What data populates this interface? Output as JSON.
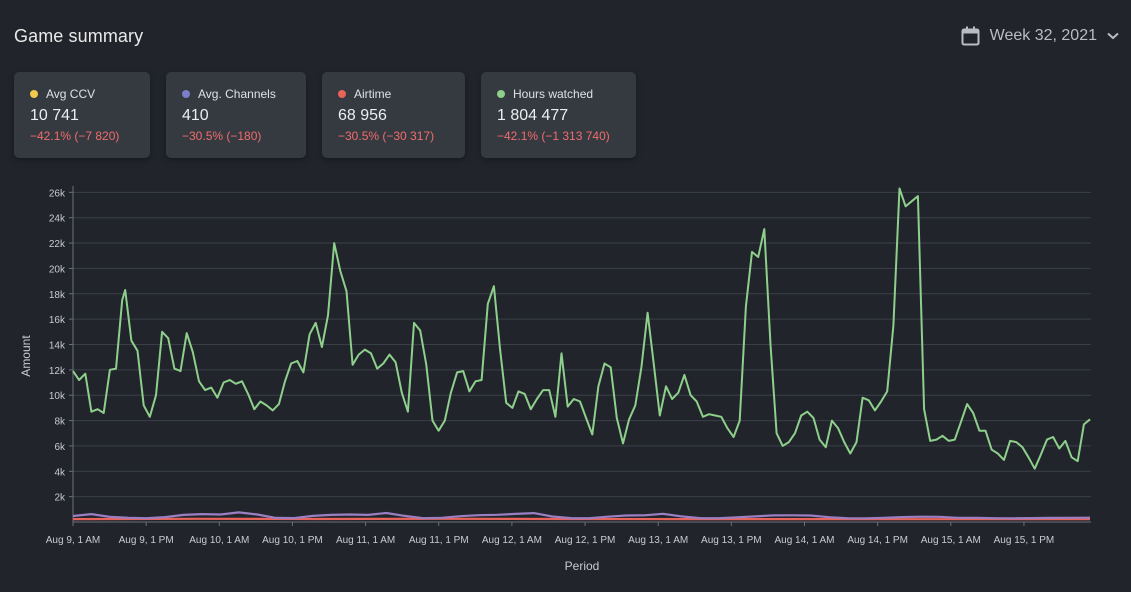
{
  "header": {
    "title": "Game summary",
    "week_label": "Week 32, 2021"
  },
  "cards": [
    {
      "label": "Avg CCV",
      "value": "10 741",
      "change": "−42.1% (−7 820)",
      "color": "#f2c94c"
    },
    {
      "label": "Avg. Channels",
      "value": "410",
      "change": "−30.5% (−180)",
      "color": "#7b7fc9"
    },
    {
      "label": "Airtime",
      "value": "68 956",
      "change": "−30.5% (−30 317)",
      "color": "#e9635a"
    },
    {
      "label": "Hours watched",
      "value": "1 804 477",
      "change": "−42.1% (−1 313 740)",
      "color": "#8ecf8b"
    }
  ],
  "colors": {
    "background": "#21252b",
    "card": "#353a41",
    "negative": "#f06c6c",
    "green_series": "#8ecf8b",
    "purple_series": "#9b7fc2",
    "grid": "#3a3f47"
  },
  "icons": {
    "calendar": "calendar-icon",
    "chevron": "chevron-down-icon"
  },
  "chart_data": {
    "type": "line",
    "xlabel": "Period",
    "ylabel": "Amount",
    "ylim": [
      0,
      26500
    ],
    "y_ticks": [
      2000,
      4000,
      6000,
      8000,
      10000,
      12000,
      14000,
      16000,
      18000,
      20000,
      22000,
      24000,
      26000
    ],
    "y_tick_labels": [
      "2k",
      "4k",
      "6k",
      "8k",
      "10k",
      "12k",
      "14k",
      "16k",
      "18k",
      "20k",
      "22k",
      "24k",
      "26k"
    ],
    "x_tick_labels": [
      "Aug 9, 1 AM",
      "Aug 9, 1 PM",
      "Aug 10, 1 AM",
      "Aug 10, 1 PM",
      "Aug 11, 1 AM",
      "Aug 11, 1 PM",
      "Aug 12, 1 AM",
      "Aug 12, 1 PM",
      "Aug 13, 1 AM",
      "Aug 13, 1 PM",
      "Aug 14, 1 AM",
      "Aug 14, 1 PM",
      "Aug 15, 1 AM",
      "Aug 15, 1 PM"
    ],
    "x_hours_per_tick": 12,
    "total_hours": 167,
    "grid": true,
    "series": [
      {
        "color": "#8ecf8b",
        "points": [
          [
            0,
            11900
          ],
          [
            2,
            11200
          ],
          [
            4,
            11700
          ],
          [
            6,
            8700
          ],
          [
            8,
            8900
          ],
          [
            10,
            8600
          ],
          [
            12,
            12000
          ],
          [
            14,
            12100
          ],
          [
            16,
            17500
          ],
          [
            17,
            18300
          ],
          [
            19,
            14300
          ],
          [
            21,
            13500
          ],
          [
            23,
            9200
          ],
          [
            25,
            8300
          ],
          [
            27,
            10000
          ],
          [
            29,
            15000
          ],
          [
            31,
            14500
          ],
          [
            33,
            12100
          ],
          [
            35,
            11900
          ],
          [
            37,
            14900
          ],
          [
            39,
            13400
          ],
          [
            41,
            11100
          ],
          [
            43,
            10400
          ],
          [
            45,
            10600
          ],
          [
            47,
            9800
          ],
          [
            49,
            11000
          ],
          [
            51,
            11200
          ],
          [
            53,
            10900
          ],
          [
            55,
            11100
          ],
          [
            57,
            10100
          ],
          [
            59,
            8900
          ],
          [
            61,
            9500
          ],
          [
            63,
            9200
          ],
          [
            65,
            8800
          ],
          [
            67,
            9300
          ],
          [
            69,
            11100
          ],
          [
            71,
            12500
          ],
          [
            73,
            12700
          ],
          [
            75,
            11800
          ],
          [
            77,
            14800
          ],
          [
            79,
            15700
          ],
          [
            81,
            13800
          ],
          [
            83,
            16300
          ],
          [
            85,
            22000
          ],
          [
            87,
            19800
          ],
          [
            89,
            18200
          ],
          [
            91,
            12400
          ],
          [
            93,
            13200
          ],
          [
            95,
            13600
          ],
          [
            97,
            13300
          ],
          [
            99,
            12100
          ],
          [
            101,
            12500
          ],
          [
            103,
            13200
          ],
          [
            105,
            12600
          ],
          [
            107,
            10200
          ],
          [
            109,
            8700
          ],
          [
            111,
            15700
          ],
          [
            113,
            15100
          ],
          [
            115,
            12400
          ],
          [
            117,
            8000
          ],
          [
            119,
            7200
          ],
          [
            121,
            8000
          ],
          [
            123,
            10200
          ],
          [
            125,
            11800
          ],
          [
            127,
            11900
          ],
          [
            129,
            10300
          ],
          [
            131,
            11100
          ],
          [
            133,
            11200
          ],
          [
            135,
            17200
          ],
          [
            137,
            18600
          ],
          [
            139,
            13600
          ],
          [
            141,
            9400
          ],
          [
            143,
            9000
          ],
          [
            145,
            10300
          ],
          [
            147,
            10100
          ],
          [
            149,
            8900
          ],
          [
            151,
            9700
          ],
          [
            153,
            10400
          ],
          [
            155,
            10400
          ],
          [
            157,
            8300
          ],
          [
            159,
            13300
          ],
          [
            161,
            9100
          ],
          [
            163,
            9700
          ],
          [
            165,
            9500
          ],
          [
            167,
            8200
          ],
          [
            169,
            6900
          ],
          [
            171,
            10700
          ],
          [
            173,
            12500
          ],
          [
            175,
            12200
          ],
          [
            177,
            8200
          ],
          [
            179,
            6200
          ],
          [
            181,
            8100
          ],
          [
            183,
            9200
          ],
          [
            185,
            12200
          ],
          [
            187,
            16500
          ],
          [
            189,
            12500
          ],
          [
            191,
            8400
          ],
          [
            193,
            10700
          ],
          [
            195,
            9700
          ],
          [
            197,
            10200
          ],
          [
            199,
            11600
          ],
          [
            201,
            10000
          ],
          [
            203,
            9500
          ],
          [
            205,
            8300
          ],
          [
            207,
            8500
          ],
          [
            209,
            8400
          ],
          [
            211,
            8300
          ],
          [
            213,
            7400
          ],
          [
            215,
            6700
          ],
          [
            217,
            8000
          ],
          [
            219,
            17000
          ],
          [
            221,
            21300
          ],
          [
            223,
            20900
          ],
          [
            225,
            23100
          ],
          [
            227,
            14000
          ],
          [
            229,
            7000
          ],
          [
            231,
            6000
          ],
          [
            233,
            6300
          ],
          [
            235,
            7000
          ],
          [
            237,
            8400
          ],
          [
            239,
            8700
          ],
          [
            241,
            8200
          ],
          [
            243,
            6500
          ],
          [
            245,
            5900
          ],
          [
            247,
            8000
          ],
          [
            249,
            7400
          ],
          [
            251,
            6300
          ],
          [
            253,
            5400
          ],
          [
            255,
            6300
          ],
          [
            257,
            9800
          ],
          [
            259,
            9600
          ],
          [
            261,
            8800
          ],
          [
            263,
            9500
          ],
          [
            265,
            10300
          ],
          [
            267,
            15500
          ],
          [
            269,
            26300
          ],
          [
            271,
            24900
          ],
          [
            273,
            25300
          ],
          [
            275,
            25700
          ],
          [
            277,
            8900
          ],
          [
            279,
            6400
          ],
          [
            281,
            6500
          ],
          [
            283,
            6800
          ],
          [
            285,
            6400
          ],
          [
            287,
            6500
          ],
          [
            289,
            7900
          ],
          [
            291,
            9300
          ],
          [
            293,
            8600
          ],
          [
            295,
            7200
          ],
          [
            297,
            7200
          ],
          [
            299,
            5700
          ],
          [
            301,
            5400
          ],
          [
            303,
            4900
          ],
          [
            305,
            6400
          ],
          [
            307,
            6300
          ],
          [
            309,
            5900
          ],
          [
            311,
            5100
          ],
          [
            313,
            4200
          ],
          [
            315,
            5300
          ],
          [
            317,
            6500
          ],
          [
            319,
            6700
          ],
          [
            321,
            5800
          ],
          [
            323,
            6400
          ],
          [
            325,
            5100
          ],
          [
            327,
            4800
          ],
          [
            329,
            7700
          ],
          [
            331,
            8100
          ]
        ]
      },
      {
        "color": "#9b7fc2",
        "points": [
          [
            0,
            470
          ],
          [
            6,
            620
          ],
          [
            12,
            400
          ],
          [
            18,
            330
          ],
          [
            24,
            300
          ],
          [
            30,
            390
          ],
          [
            36,
            560
          ],
          [
            42,
            620
          ],
          [
            48,
            590
          ],
          [
            54,
            760
          ],
          [
            60,
            590
          ],
          [
            66,
            320
          ],
          [
            72,
            310
          ],
          [
            78,
            480
          ],
          [
            84,
            560
          ],
          [
            90,
            590
          ],
          [
            96,
            560
          ],
          [
            102,
            710
          ],
          [
            108,
            480
          ],
          [
            114,
            300
          ],
          [
            120,
            330
          ],
          [
            126,
            460
          ],
          [
            132,
            540
          ],
          [
            138,
            570
          ],
          [
            144,
            640
          ],
          [
            150,
            700
          ],
          [
            156,
            430
          ],
          [
            162,
            310
          ],
          [
            168,
            300
          ],
          [
            174,
            420
          ],
          [
            180,
            510
          ],
          [
            186,
            530
          ],
          [
            192,
            650
          ],
          [
            198,
            440
          ],
          [
            204,
            310
          ],
          [
            210,
            300
          ],
          [
            216,
            360
          ],
          [
            222,
            440
          ],
          [
            228,
            520
          ],
          [
            234,
            530
          ],
          [
            240,
            510
          ],
          [
            246,
            380
          ],
          [
            252,
            300
          ],
          [
            258,
            290
          ],
          [
            264,
            330
          ],
          [
            270,
            390
          ],
          [
            276,
            420
          ],
          [
            282,
            410
          ],
          [
            288,
            330
          ],
          [
            294,
            330
          ],
          [
            300,
            300
          ],
          [
            306,
            290
          ],
          [
            312,
            310
          ],
          [
            318,
            320
          ],
          [
            324,
            330
          ],
          [
            331,
            340
          ]
        ]
      },
      {
        "color": "#e9635a",
        "points": [
          [
            0,
            230
          ],
          [
            40,
            250
          ],
          [
            80,
            240
          ],
          [
            120,
            250
          ],
          [
            160,
            240
          ],
          [
            200,
            230
          ],
          [
            240,
            230
          ],
          [
            280,
            220
          ],
          [
            331,
            220
          ]
        ]
      }
    ]
  }
}
